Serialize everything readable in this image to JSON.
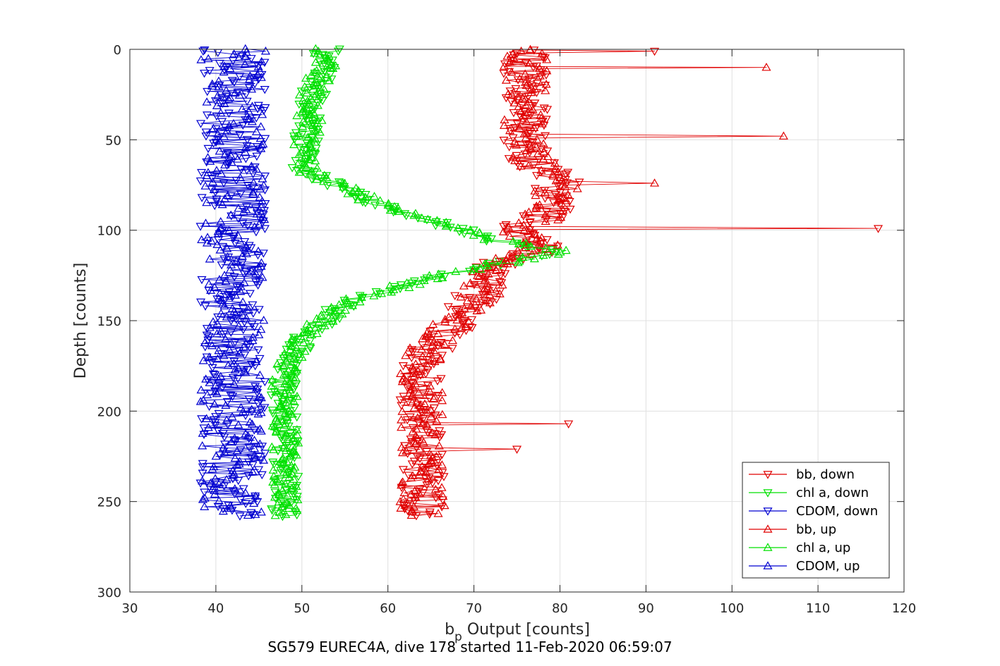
{
  "chart_data": {
    "type": "line",
    "title": "",
    "xlabel": "b",
    "xlabel_sub": "p",
    "xlabel_rest": " Output [counts]",
    "ylabel": "Depth [counts]",
    "caption": "SG579 EUREC4A, dive 178 started 11-Feb-2020 06:59:07",
    "xlim": [
      30,
      120
    ],
    "ylim": [
      0,
      300
    ],
    "y_reversed": true,
    "x_ticks": [
      30,
      40,
      50,
      60,
      70,
      80,
      90,
      100,
      110,
      120
    ],
    "x_tick_labels": [
      "30",
      "40",
      "50",
      "60",
      "70",
      "80",
      "90",
      "100",
      "110",
      "120"
    ],
    "y_ticks": [
      0,
      50,
      100,
      150,
      200,
      250,
      300
    ],
    "y_tick_labels": [
      "0",
      "50",
      "100",
      "150",
      "200",
      "250",
      "300"
    ],
    "grid": true,
    "legend_position": "bottom-right",
    "colors": {
      "bb": "#e00000",
      "chl": "#00e000",
      "cdom": "#0000d0",
      "axis": "#262626",
      "grid": "#e0e0e0"
    },
    "profile_key_points": {
      "bb": {
        "depth": [
          0,
          60,
          70,
          90,
          100,
          110,
          120,
          140,
          160,
          170,
          200,
          258
        ],
        "value": [
          76,
          76,
          80,
          79,
          75,
          78,
          72,
          70,
          66,
          64,
          64,
          64
        ]
      },
      "chl": {
        "depth": [
          0,
          30,
          65,
          80,
          95,
          105,
          112,
          125,
          140,
          160,
          180,
          258
        ],
        "value": [
          53,
          51,
          50,
          56,
          65,
          72,
          80,
          66,
          55,
          50,
          48,
          48
        ]
      },
      "cdom": {
        "depth": [
          0,
          258
        ],
        "value": [
          42,
          42
        ]
      }
    },
    "spikes": [
      {
        "series": "bb, down",
        "depth": 1,
        "value": 91
      },
      {
        "series": "bb, up",
        "depth": 10,
        "value": 104
      },
      {
        "series": "bb, up",
        "depth": 48,
        "value": 106
      },
      {
        "series": "bb, up",
        "depth": 74,
        "value": 91
      },
      {
        "series": "bb, down",
        "depth": 99,
        "value": 117
      },
      {
        "series": "bb, down",
        "depth": 207,
        "value": 81
      },
      {
        "series": "bb, down",
        "depth": 221,
        "value": 75
      }
    ],
    "series": [
      {
        "name": "bb, down",
        "color": "#e00000",
        "marker": "triangle-down",
        "profile": "bb",
        "phase": 0.3,
        "jitter": 2.6
      },
      {
        "name": "chl a, down",
        "color": "#00e000",
        "marker": "triangle-down",
        "profile": "chl",
        "phase": 1.7,
        "jitter": 1.6
      },
      {
        "name": "CDOM, down",
        "color": "#0000d0",
        "marker": "triangle-down",
        "profile": "cdom",
        "phase": 2.9,
        "jitter": 3.8
      },
      {
        "name": "bb, up",
        "color": "#e00000",
        "marker": "triangle-up",
        "profile": "bb",
        "phase": 4.1,
        "jitter": 2.6
      },
      {
        "name": "chl a, up",
        "color": "#00e000",
        "marker": "triangle-up",
        "profile": "chl",
        "phase": 5.3,
        "jitter": 1.6
      },
      {
        "name": "CDOM, up",
        "color": "#0000d0",
        "marker": "triangle-up",
        "profile": "cdom",
        "phase": 6.7,
        "jitter": 3.8
      }
    ]
  }
}
